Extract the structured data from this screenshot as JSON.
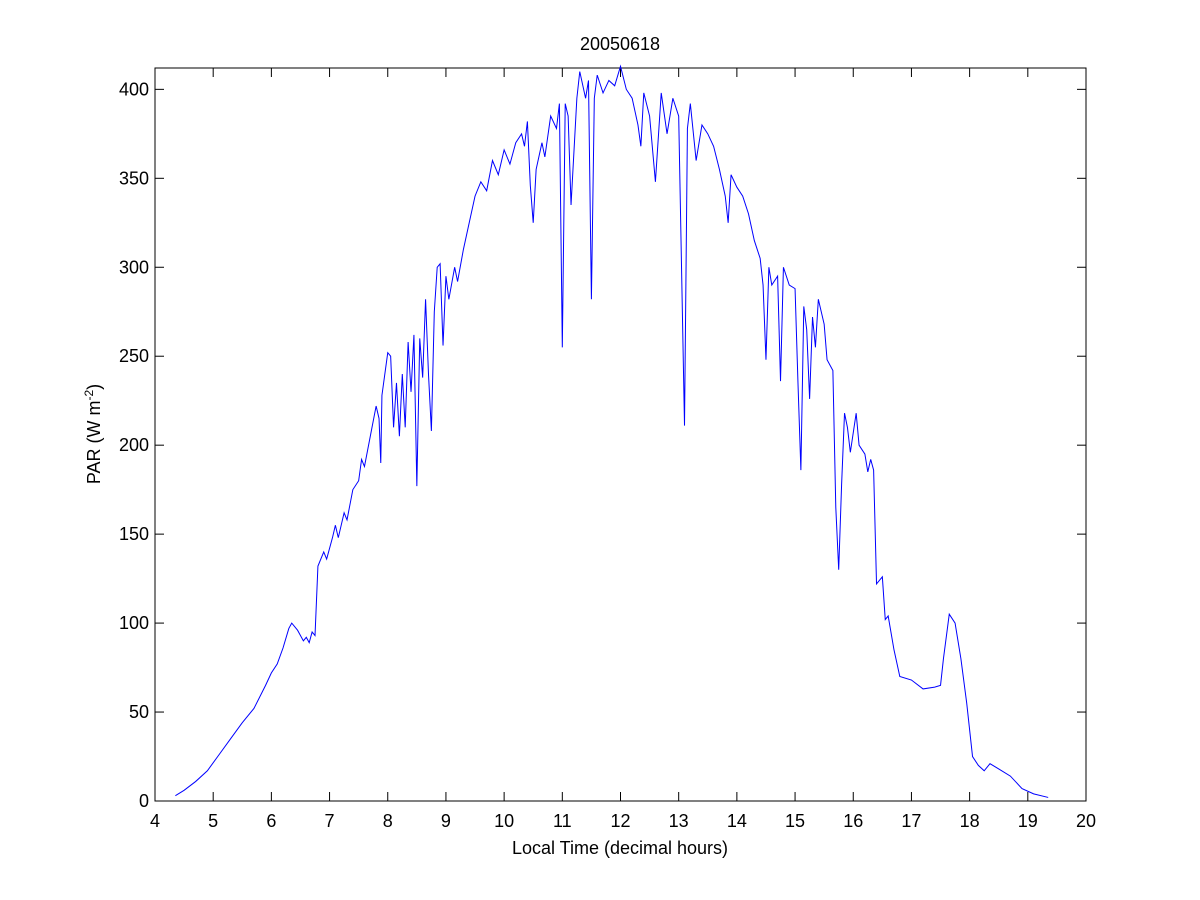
{
  "chart_data": {
    "type": "line",
    "title": "20050618",
    "xlabel": "Local Time (decimal hours)",
    "ylabel": {
      "text": "PAR (W m",
      "superscript": "-2",
      "suffix": ")"
    },
    "xlim": [
      4,
      20
    ],
    "ylim": [
      0,
      412
    ],
    "xticks": [
      4,
      5,
      6,
      7,
      8,
      9,
      10,
      11,
      12,
      13,
      14,
      15,
      16,
      17,
      18,
      19,
      20
    ],
    "yticks": [
      0,
      50,
      100,
      150,
      200,
      250,
      300,
      350,
      400
    ],
    "x": [
      4.35,
      4.5,
      4.7,
      4.9,
      5.1,
      5.3,
      5.5,
      5.7,
      5.9,
      6.0,
      6.1,
      6.2,
      6.3,
      6.35,
      6.45,
      6.55,
      6.6,
      6.65,
      6.7,
      6.75,
      6.8,
      6.9,
      6.95,
      7.05,
      7.1,
      7.15,
      7.25,
      7.3,
      7.4,
      7.5,
      7.55,
      7.6,
      7.7,
      7.8,
      7.85,
      7.88,
      7.9,
      8.0,
      8.05,
      8.1,
      8.15,
      8.2,
      8.25,
      8.3,
      8.35,
      8.4,
      8.45,
      8.5,
      8.55,
      8.6,
      8.65,
      8.7,
      8.75,
      8.8,
      8.85,
      8.9,
      8.95,
      9.0,
      9.05,
      9.15,
      9.2,
      9.3,
      9.4,
      9.5,
      9.6,
      9.7,
      9.8,
      9.9,
      10.0,
      10.1,
      10.2,
      10.3,
      10.35,
      10.4,
      10.45,
      10.5,
      10.55,
      10.65,
      10.7,
      10.8,
      10.9,
      10.95,
      11.0,
      11.05,
      11.1,
      11.15,
      11.25,
      11.3,
      11.4,
      11.45,
      11.5,
      11.55,
      11.6,
      11.7,
      11.8,
      11.9,
      12.0,
      12.1,
      12.2,
      12.3,
      12.35,
      12.4,
      12.5,
      12.6,
      12.7,
      12.8,
      12.9,
      13.0,
      13.1,
      13.15,
      13.2,
      13.3,
      13.4,
      13.5,
      13.6,
      13.7,
      13.8,
      13.85,
      13.9,
      14.0,
      14.1,
      14.2,
      14.3,
      14.4,
      14.45,
      14.5,
      14.55,
      14.6,
      14.7,
      14.75,
      14.8,
      14.9,
      15.0,
      15.05,
      15.1,
      15.15,
      15.2,
      15.25,
      15.3,
      15.35,
      15.4,
      15.5,
      15.55,
      15.65,
      15.7,
      15.75,
      15.8,
      15.85,
      15.9,
      15.95,
      16.05,
      16.1,
      16.2,
      16.25,
      16.3,
      16.35,
      16.4,
      16.5,
      16.55,
      16.6,
      16.7,
      16.8,
      17.0,
      17.2,
      17.4,
      17.5,
      17.55,
      17.65,
      17.75,
      17.85,
      17.95,
      18.05,
      18.15,
      18.25,
      18.35,
      18.5,
      18.7,
      18.9,
      19.1,
      19.35
    ],
    "series": [
      {
        "name": "PAR",
        "color": "#0000ff",
        "values": [
          3,
          6,
          11,
          17,
          26,
          35,
          44,
          52,
          65,
          72,
          77,
          86,
          97,
          100,
          96,
          90,
          92,
          89,
          95,
          93,
          132,
          140,
          136,
          148,
          155,
          148,
          162,
          158,
          175,
          180,
          192,
          188,
          205,
          222,
          215,
          190,
          228,
          252,
          250,
          210,
          235,
          205,
          240,
          210,
          258,
          230,
          262,
          177,
          260,
          238,
          282,
          240,
          208,
          275,
          300,
          302,
          256,
          295,
          282,
          300,
          292,
          310,
          325,
          340,
          348,
          343,
          360,
          352,
          366,
          358,
          370,
          375,
          368,
          382,
          346,
          325,
          355,
          370,
          362,
          385,
          378,
          392,
          255,
          392,
          385,
          335,
          395,
          410,
          395,
          405,
          282,
          395,
          408,
          398,
          405,
          402,
          413,
          400,
          395,
          380,
          368,
          398,
          385,
          348,
          398,
          375,
          395,
          385,
          211,
          378,
          392,
          360,
          380,
          375,
          368,
          355,
          340,
          325,
          352,
          345,
          340,
          330,
          315,
          305,
          290,
          248,
          300,
          290,
          295,
          236,
          300,
          290,
          288,
          235,
          186,
          278,
          265,
          226,
          272,
          255,
          282,
          268,
          248,
          242,
          165,
          130,
          178,
          218,
          210,
          196,
          218,
          200,
          195,
          185,
          192,
          186,
          122,
          126,
          102,
          104,
          85,
          70,
          68,
          63,
          64,
          65,
          80,
          105,
          100,
          80,
          55,
          25,
          20,
          17,
          21,
          18,
          14,
          7,
          4,
          2
        ]
      }
    ]
  }
}
